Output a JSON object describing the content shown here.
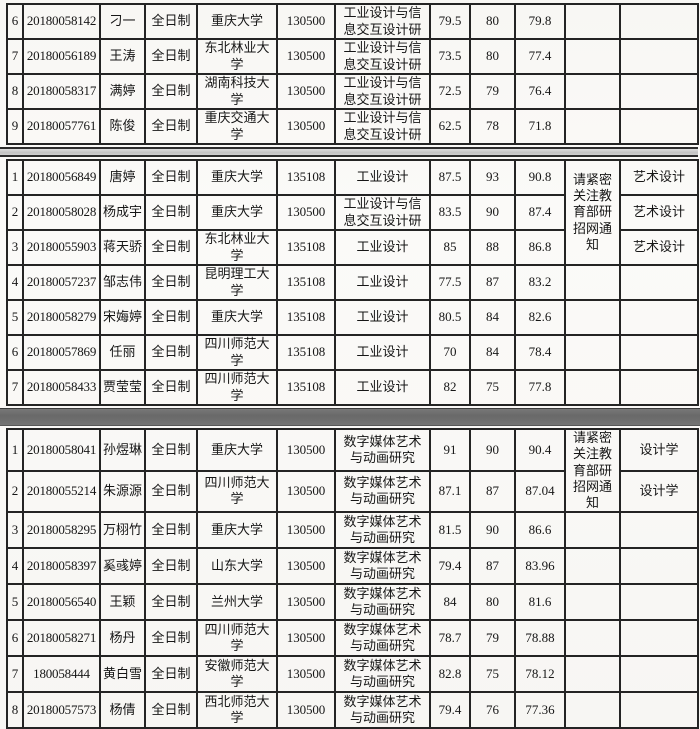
{
  "document": {
    "kind": "scanned-admissions-score-table",
    "colors": {
      "paper": "#faf9f6",
      "border": "#242424",
      "text": "#161616",
      "divider_light": "#c3c3c3",
      "divider_dark": "#6e6e6e"
    }
  },
  "table": {
    "column_keys": [
      "num",
      "id",
      "name",
      "mode",
      "university",
      "code",
      "major",
      "s1",
      "s2",
      "s3",
      "note",
      "extra"
    ],
    "sections": [
      {
        "name": "section-top",
        "merged_note": null,
        "rows": [
          {
            "num": "6",
            "id": "20180058142",
            "name": "刁一",
            "mode": "全日制",
            "university": "重庆大学",
            "code": "130500",
            "major": "工业设计与信息交互设计研",
            "s1": "79.5",
            "s2": "80",
            "s3": "79.8",
            "note": "",
            "extra": ""
          },
          {
            "num": "7",
            "id": "20180056189",
            "name": "王涛",
            "mode": "全日制",
            "university": "东北林业大学",
            "code": "130500",
            "major": "工业设计与信息交互设计研",
            "s1": "73.5",
            "s2": "80",
            "s3": "77.4",
            "note": "",
            "extra": ""
          },
          {
            "num": "8",
            "id": "20180058317",
            "name": "满婷",
            "mode": "全日制",
            "university": "湖南科技大学",
            "code": "130500",
            "major": "工业设计与信息交互设计研",
            "s1": "72.5",
            "s2": "79",
            "s3": "76.4",
            "note": "",
            "extra": ""
          },
          {
            "num": "9",
            "id": "20180057761",
            "name": "陈俊",
            "mode": "全日制",
            "university": "重庆交通大学",
            "code": "130500",
            "major": "工业设计与信息交互设计研",
            "s1": "62.5",
            "s2": "78",
            "s3": "71.8",
            "note": "",
            "extra": ""
          }
        ]
      },
      {
        "name": "section-middle",
        "merged_note": {
          "text": "请紧密关注教育部研招网通知",
          "rowspan": 3
        },
        "rows": [
          {
            "num": "1",
            "id": "20180056849",
            "name": "唐婷",
            "mode": "全日制",
            "university": "重庆大学",
            "code": "135108",
            "major": "工业设计",
            "s1": "87.5",
            "s2": "93",
            "s3": "90.8",
            "extra": "艺术设计"
          },
          {
            "num": "2",
            "id": "20180058028",
            "name": "杨成宇",
            "mode": "全日制",
            "university": "重庆大学",
            "code": "130500",
            "major": "工业设计与信息交互设计研",
            "s1": "83.5",
            "s2": "90",
            "s3": "87.4",
            "extra": "艺术设计"
          },
          {
            "num": "3",
            "id": "20180055903",
            "name": "蒋天骄",
            "mode": "全日制",
            "university": "东北林业大学",
            "code": "135108",
            "major": "工业设计",
            "s1": "85",
            "s2": "88",
            "s3": "86.8",
            "extra": "艺术设计"
          },
          {
            "num": "4",
            "id": "20180057237",
            "name": "邹志伟",
            "mode": "全日制",
            "university": "昆明理工大学",
            "code": "135108",
            "major": "工业设计",
            "s1": "77.5",
            "s2": "87",
            "s3": "83.2",
            "extra": ""
          },
          {
            "num": "5",
            "id": "20180058279",
            "name": "宋娒婷",
            "mode": "全日制",
            "university": "重庆大学",
            "code": "135108",
            "major": "工业设计",
            "s1": "80.5",
            "s2": "84",
            "s3": "82.6",
            "extra": ""
          },
          {
            "num": "6",
            "id": "20180057869",
            "name": "任丽",
            "mode": "全日制",
            "university": "四川师范大学",
            "code": "135108",
            "major": "工业设计",
            "s1": "70",
            "s2": "84",
            "s3": "78.4",
            "extra": ""
          },
          {
            "num": "7",
            "id": "20180058433",
            "name": "贾莹莹",
            "mode": "全日制",
            "university": "四川师范大学",
            "code": "135108",
            "major": "工业设计",
            "s1": "82",
            "s2": "75",
            "s3": "77.8",
            "extra": ""
          }
        ]
      },
      {
        "name": "section-bottom",
        "merged_note": {
          "text": "请紧密关注教育部研招网通知",
          "rowspan": 2
        },
        "rows": [
          {
            "num": "1",
            "id": "20180058041",
            "name": "孙煜琳",
            "mode": "全日制",
            "university": "重庆大学",
            "code": "130500",
            "major": "数字媒体艺术与动画研究",
            "s1": "91",
            "s2": "90",
            "s3": "90.4",
            "extra": "设计学"
          },
          {
            "num": "2",
            "id": "20180055214",
            "name": "朱源源",
            "mode": "全日制",
            "university": "四川师范大学",
            "code": "130500",
            "major": "数字媒体艺术与动画研究",
            "s1": "87.1",
            "s2": "87",
            "s3": "87.04",
            "extra": "设计学"
          },
          {
            "num": "3",
            "id": "20180058295",
            "name": "万栩竹",
            "mode": "全日制",
            "university": "重庆大学",
            "code": "130500",
            "major": "数字媒体艺术与动画研究",
            "s1": "81.5",
            "s2": "90",
            "s3": "86.6",
            "extra": ""
          },
          {
            "num": "4",
            "id": "20180058397",
            "name": "奚彧婷",
            "mode": "全日制",
            "university": "山东大学",
            "code": "130500",
            "major": "数字媒体艺术与动画研究",
            "s1": "79.4",
            "s2": "87",
            "s3": "83.96",
            "extra": ""
          },
          {
            "num": "5",
            "id": "20180056540",
            "name": "王颖",
            "mode": "全日制",
            "university": "兰州大学",
            "code": "130500",
            "major": "数字媒体艺术与动画研究",
            "s1": "84",
            "s2": "80",
            "s3": "81.6",
            "extra": ""
          },
          {
            "num": "6",
            "id": "20180058271",
            "name": "杨丹",
            "mode": "全日制",
            "university": "四川师范大学",
            "code": "130500",
            "major": "数字媒体艺术与动画研究",
            "s1": "78.7",
            "s2": "79",
            "s3": "78.88",
            "extra": ""
          },
          {
            "num": "7",
            "id": "180058444",
            "name": "黄白雪",
            "mode": "全日制",
            "university": "安徽师范大学",
            "code": "130500",
            "major": "数字媒体艺术与动画研究",
            "s1": "82.8",
            "s2": "75",
            "s3": "78.12",
            "extra": ""
          },
          {
            "num": "8",
            "id": "20180057573",
            "name": "杨倩",
            "mode": "全日制",
            "university": "西北师范大学",
            "code": "130500",
            "major": "数字媒体艺术与动画研究",
            "s1": "79.4",
            "s2": "76",
            "s3": "77.36",
            "extra": ""
          }
        ]
      }
    ]
  }
}
